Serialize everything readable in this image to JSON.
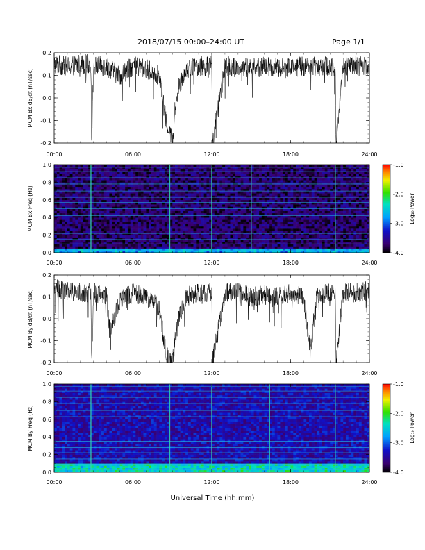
{
  "header": {
    "title": "2018/07/15  00:00–24:00 UT",
    "page": "Page 1/1"
  },
  "xlabel": "Universal Time (hh:mm)",
  "colorbar_label": "Log₁₀ Power",
  "chart_data": [
    {
      "type": "line",
      "ylabel": "MCM Bx dB/dt (nT/sec)",
      "xlim": [
        0,
        24
      ],
      "ylim": [
        -0.2,
        0.2
      ],
      "x_ticks": [
        "00:00",
        "06:00",
        "12:00",
        "18:00",
        "24:00"
      ],
      "y_ticks": [
        "0.2",
        "0.1",
        "0.0",
        "-0.1",
        "-0.2"
      ],
      "series": [
        {
          "x": [
            0,
            1,
            2,
            2.8,
            2.85,
            3,
            4,
            5,
            6,
            7,
            8,
            8.5,
            8.8,
            9.0,
            9.2,
            9.5,
            10,
            11,
            12,
            12.05,
            13,
            14,
            15,
            16,
            17,
            18,
            19,
            20,
            21,
            21.4,
            21.45,
            22,
            23,
            24
          ],
          "y": [
            0.15,
            0.14,
            0.15,
            0.15,
            -0.2,
            0.14,
            0.14,
            0.1,
            0.14,
            0.13,
            0.1,
            -0.1,
            -0.15,
            -0.2,
            -0.05,
            0.05,
            0.13,
            0.14,
            0.14,
            -0.2,
            0.14,
            0.14,
            0.13,
            0.14,
            0.13,
            0.14,
            0.14,
            0.14,
            0.14,
            0.14,
            -0.2,
            0.14,
            0.14,
            0.14
          ]
        }
      ]
    },
    {
      "type": "heatmap",
      "ylabel": "MCM Bx Freq (Hz)",
      "xlim": [
        0,
        24
      ],
      "ylim": [
        0,
        1.0
      ],
      "x_ticks": [
        "00:00",
        "06:00",
        "12:00",
        "18:00",
        "24:00"
      ],
      "y_ticks": [
        "1.0",
        "0.8",
        "0.6",
        "0.4",
        "0.2",
        "0.0"
      ],
      "colorbar_ticks": [
        "-1.0",
        "-2.0",
        "-3.0",
        "-4.0"
      ],
      "colorbar_range": [
        -4.0,
        -1.0
      ],
      "background_log_power": -3.7,
      "harmonic_lines_hz": [
        0.03,
        0.1,
        0.15,
        0.22,
        0.28,
        0.35,
        0.42,
        0.5,
        0.57,
        0.63,
        0.7,
        0.78,
        0.85,
        0.92,
        0.97
      ],
      "event_times_h": [
        2.8,
        8.8,
        12.0,
        15.0,
        21.4
      ],
      "low_freq_power_band_hz": [
        0,
        0.06
      ]
    },
    {
      "type": "line",
      "ylabel": "MCM By dB/dt (nT/sec)",
      "xlim": [
        0,
        24
      ],
      "ylim": [
        -0.2,
        0.2
      ],
      "x_ticks": [
        "00:00",
        "06:00",
        "12:00",
        "18:00",
        "24:00"
      ],
      "y_ticks": [
        "0.2",
        "0.1",
        "0.0",
        "-0.1",
        "-0.2"
      ],
      "series": [
        {
          "x": [
            0,
            1,
            2,
            2.8,
            2.85,
            3,
            4,
            4.2,
            5,
            6,
            7,
            8,
            8.5,
            8.8,
            9.0,
            9.2,
            9.5,
            10,
            11,
            12,
            12.05,
            13,
            14,
            15,
            16,
            17,
            18,
            19,
            19.5,
            20,
            21,
            21.4,
            21.45,
            22,
            23,
            24
          ],
          "y": [
            0.14,
            0.13,
            0.12,
            0.12,
            -0.2,
            0.12,
            0.1,
            -0.05,
            0.08,
            0.12,
            0.1,
            0.05,
            -0.15,
            -0.2,
            -0.2,
            -0.1,
            0.0,
            0.1,
            0.12,
            0.12,
            -0.2,
            0.12,
            0.12,
            0.1,
            0.11,
            0.1,
            0.12,
            0.1,
            -0.15,
            0.11,
            0.12,
            0.12,
            -0.2,
            0.12,
            0.12,
            0.13
          ]
        }
      ]
    },
    {
      "type": "heatmap",
      "ylabel": "MCM By Freq (Hz)",
      "xlim": [
        0,
        24
      ],
      "ylim": [
        0,
        1.0
      ],
      "x_ticks": [
        "00:00",
        "06:00",
        "12:00",
        "18:00",
        "24:00"
      ],
      "y_ticks": [
        "1.0",
        "0.8",
        "0.6",
        "0.4",
        "0.2",
        "0.0"
      ],
      "colorbar_ticks": [
        "-1.0",
        "-2.0",
        "-3.0",
        "-4.0"
      ],
      "colorbar_range": [
        -4.0,
        -1.0
      ],
      "background_log_power": -3.4,
      "harmonic_lines_hz": [
        0.03,
        0.09,
        0.15,
        0.22,
        0.28,
        0.35,
        0.42,
        0.5,
        0.57,
        0.63,
        0.7,
        0.78,
        0.85,
        0.92,
        0.97
      ],
      "event_times_h": [
        2.8,
        8.8,
        12.0,
        16.4,
        21.4
      ],
      "low_freq_power_band_hz": [
        0,
        0.1
      ]
    }
  ]
}
